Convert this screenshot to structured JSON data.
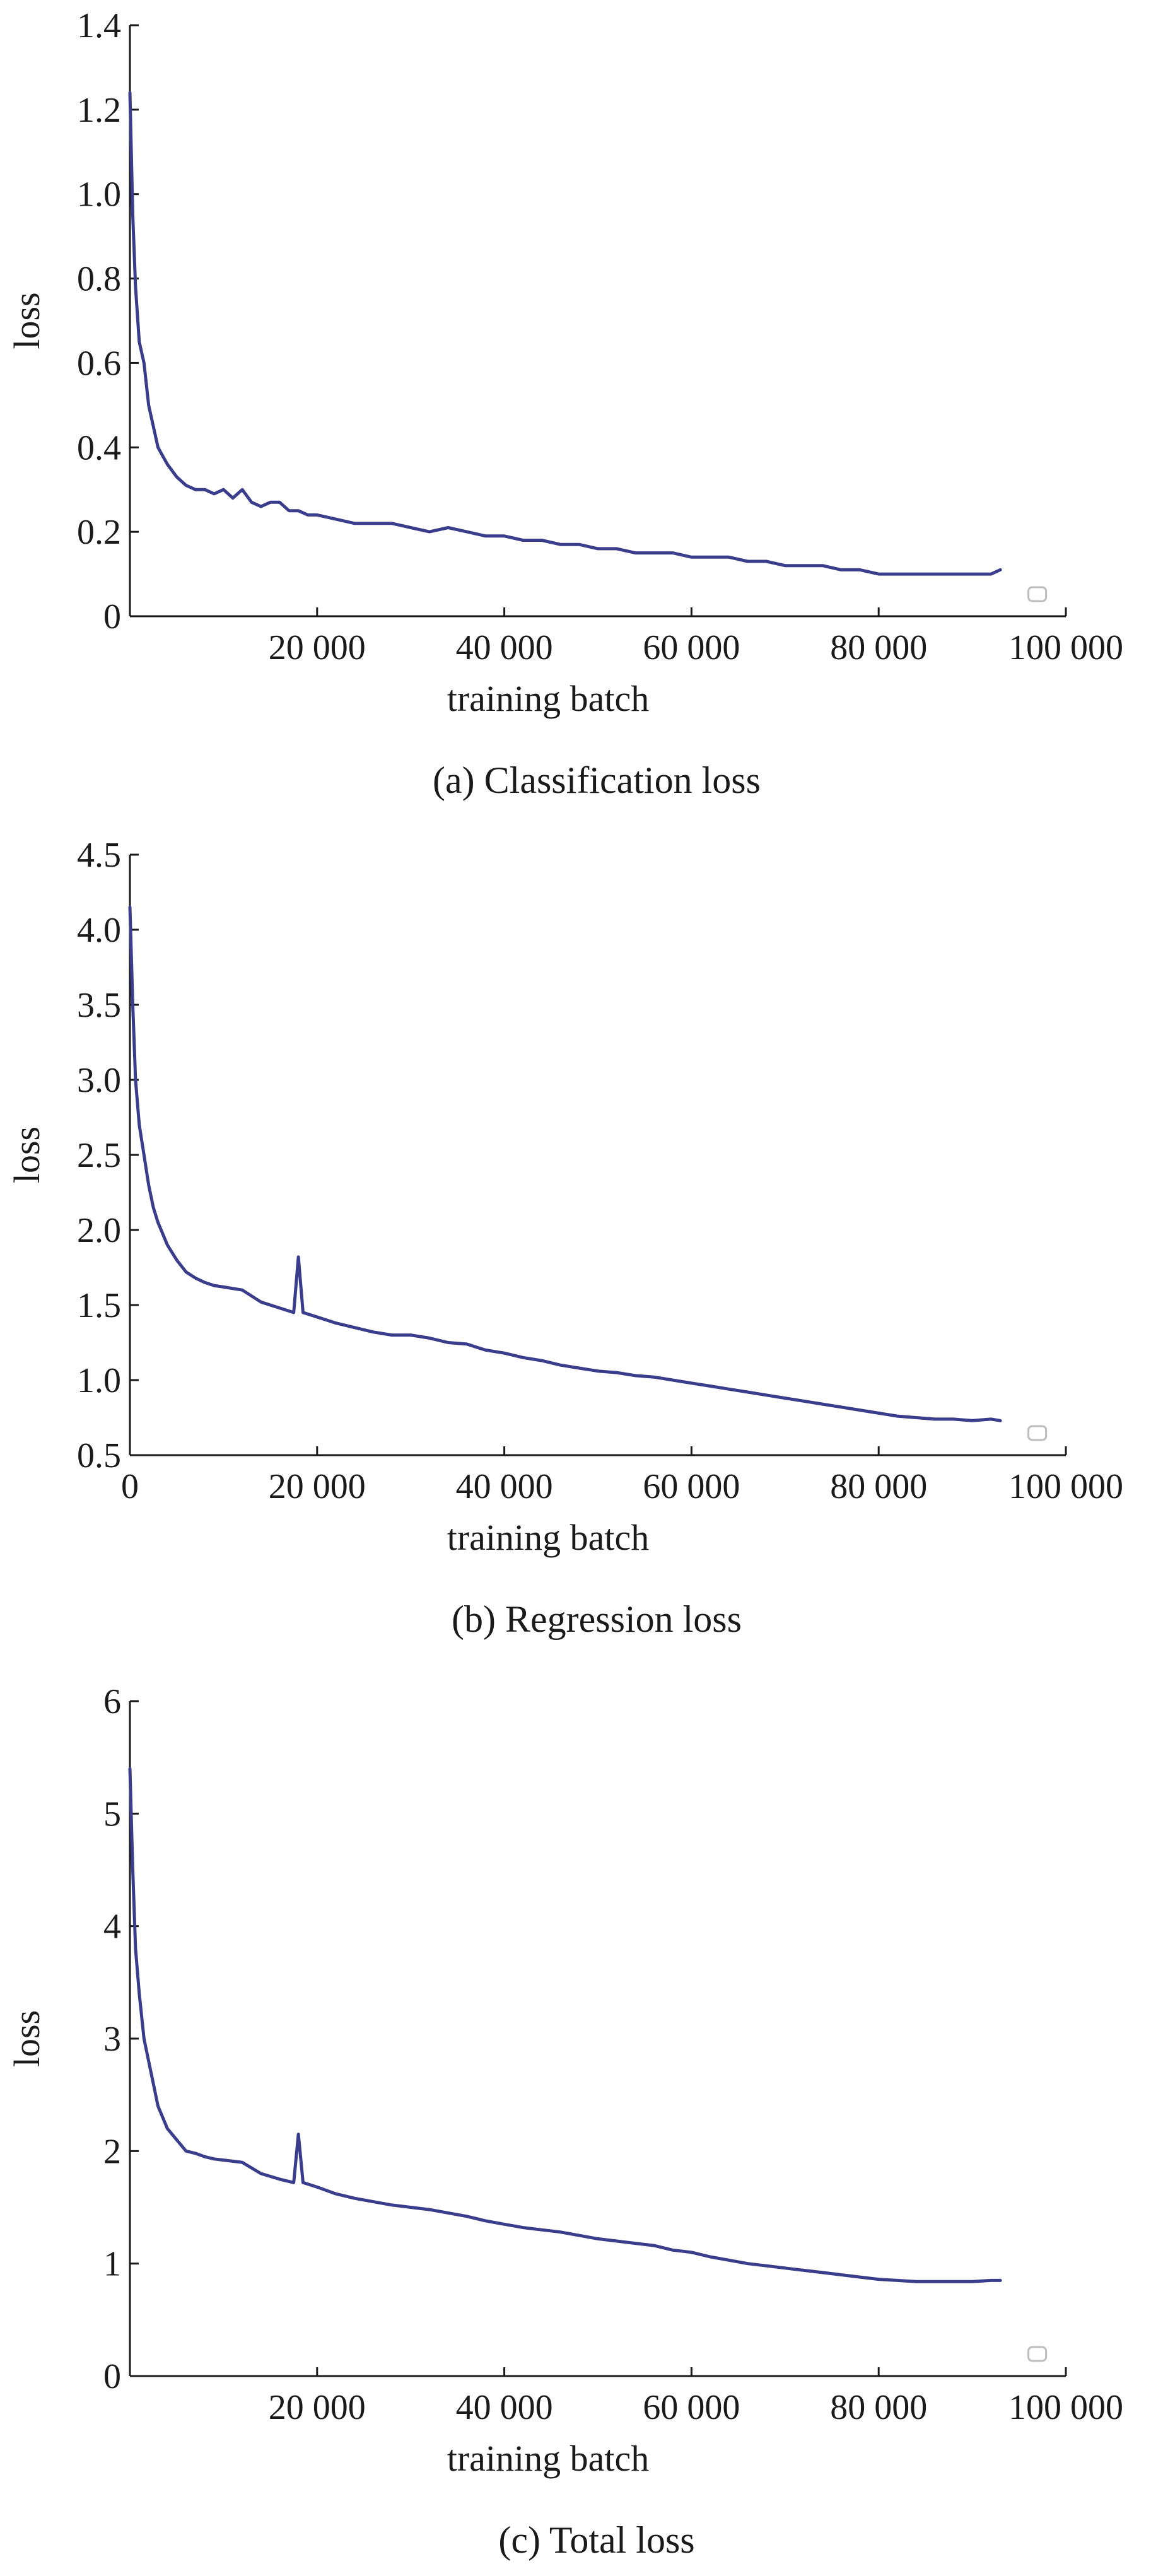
{
  "colors": {
    "line": "#3a3d8c",
    "axis": "#1a1a1a",
    "marker": "#bdbdbd"
  },
  "chart_data": [
    {
      "id": "a",
      "type": "line",
      "caption": "(a) Classification loss",
      "xlabel": "training batch",
      "ylabel": "loss",
      "xlim": [
        0,
        100000
      ],
      "ylim": [
        0,
        1.4
      ],
      "xticks": [
        20000,
        40000,
        60000,
        80000,
        100000
      ],
      "xtick_labels": [
        "20 000",
        "40 000",
        "60 000",
        "80 000",
        "100 000"
      ],
      "yticks": [
        0,
        0.2,
        0.4,
        0.6,
        0.8,
        1.0,
        1.2,
        1.4
      ],
      "ytick_labels": [
        "0",
        "0.2",
        "0.4",
        "0.6",
        "0.8",
        "1.0",
        "1.2",
        "1.4"
      ],
      "grid": false,
      "legend": "none",
      "series": [
        {
          "x": [
            0,
            300,
            600,
            1000,
            1500,
            2000,
            2500,
            3000,
            3500,
            4000,
            5000,
            6000,
            7000,
            8000,
            9000,
            10000,
            11000,
            12000,
            13000,
            14000,
            15000,
            16000,
            17000,
            18000,
            19000,
            20000,
            22000,
            24000,
            26000,
            28000,
            30000,
            32000,
            34000,
            36000,
            38000,
            40000,
            42000,
            44000,
            46000,
            48000,
            50000,
            52000,
            54000,
            56000,
            58000,
            60000,
            62000,
            64000,
            66000,
            68000,
            70000,
            72000,
            74000,
            76000,
            78000,
            80000,
            82000,
            84000,
            86000,
            88000,
            90000,
            92000,
            93000
          ],
          "y": [
            1.24,
            0.95,
            0.78,
            0.65,
            0.6,
            0.5,
            0.45,
            0.4,
            0.38,
            0.36,
            0.33,
            0.31,
            0.3,
            0.3,
            0.29,
            0.3,
            0.28,
            0.3,
            0.27,
            0.26,
            0.27,
            0.27,
            0.25,
            0.25,
            0.24,
            0.24,
            0.23,
            0.22,
            0.22,
            0.22,
            0.21,
            0.2,
            0.21,
            0.2,
            0.19,
            0.19,
            0.18,
            0.18,
            0.17,
            0.17,
            0.16,
            0.16,
            0.15,
            0.15,
            0.15,
            0.14,
            0.14,
            0.14,
            0.13,
            0.13,
            0.12,
            0.12,
            0.12,
            0.11,
            0.11,
            0.1,
            0.1,
            0.1,
            0.1,
            0.1,
            0.1,
            0.1,
            0.11
          ]
        }
      ]
    },
    {
      "id": "b",
      "type": "line",
      "caption": "(b) Regression loss",
      "xlabel": "training batch",
      "ylabel": "loss",
      "xlim": [
        0,
        100000
      ],
      "ylim": [
        0.5,
        4.5
      ],
      "xticks": [
        0,
        20000,
        40000,
        60000,
        80000,
        100000
      ],
      "xtick_labels": [
        "0",
        "20 000",
        "40 000",
        "60 000",
        "80 000",
        "100 000"
      ],
      "yticks": [
        0.5,
        1.0,
        1.5,
        2.0,
        2.5,
        3.0,
        3.5,
        4.0,
        4.5
      ],
      "ytick_labels": [
        "0.5",
        "1.0",
        "1.5",
        "2.0",
        "2.5",
        "3.0",
        "3.5",
        "4.0",
        "4.5"
      ],
      "grid": false,
      "legend": "none",
      "series": [
        {
          "x": [
            0,
            300,
            600,
            1000,
            1500,
            2000,
            2500,
            3000,
            4000,
            5000,
            6000,
            7000,
            8000,
            9000,
            10000,
            12000,
            14000,
            16000,
            17500,
            18000,
            18500,
            20000,
            22000,
            24000,
            26000,
            28000,
            30000,
            32000,
            34000,
            36000,
            38000,
            40000,
            42000,
            44000,
            46000,
            48000,
            50000,
            52000,
            54000,
            56000,
            58000,
            60000,
            62000,
            64000,
            66000,
            68000,
            70000,
            72000,
            74000,
            76000,
            78000,
            80000,
            82000,
            84000,
            86000,
            88000,
            90000,
            92000,
            93000
          ],
          "y": [
            4.15,
            3.5,
            3.0,
            2.7,
            2.5,
            2.3,
            2.15,
            2.05,
            1.9,
            1.8,
            1.72,
            1.68,
            1.65,
            1.63,
            1.62,
            1.6,
            1.52,
            1.48,
            1.45,
            1.82,
            1.45,
            1.42,
            1.38,
            1.35,
            1.32,
            1.3,
            1.3,
            1.28,
            1.25,
            1.24,
            1.2,
            1.18,
            1.15,
            1.13,
            1.1,
            1.08,
            1.06,
            1.05,
            1.03,
            1.02,
            1.0,
            0.98,
            0.96,
            0.94,
            0.92,
            0.9,
            0.88,
            0.86,
            0.84,
            0.82,
            0.8,
            0.78,
            0.76,
            0.75,
            0.74,
            0.74,
            0.73,
            0.74,
            0.73
          ]
        }
      ]
    },
    {
      "id": "c",
      "type": "line",
      "caption": "(c) Total loss",
      "xlabel": "training batch",
      "ylabel": "loss",
      "xlim": [
        0,
        100000
      ],
      "ylim": [
        0,
        6
      ],
      "xticks": [
        20000,
        40000,
        60000,
        80000,
        100000
      ],
      "xtick_labels": [
        "20 000",
        "40 000",
        "60 000",
        "80 000",
        "100 000"
      ],
      "yticks": [
        0,
        1,
        2,
        3,
        4,
        5,
        6
      ],
      "ytick_labels": [
        "0",
        "1",
        "2",
        "3",
        "4",
        "5",
        "6"
      ],
      "grid": false,
      "legend": "none",
      "series": [
        {
          "x": [
            0,
            300,
            600,
            1000,
            1500,
            2000,
            2500,
            3000,
            4000,
            5000,
            6000,
            7000,
            8000,
            9000,
            10000,
            12000,
            14000,
            16000,
            17500,
            18000,
            18500,
            20000,
            22000,
            24000,
            26000,
            28000,
            30000,
            32000,
            34000,
            36000,
            38000,
            40000,
            42000,
            44000,
            46000,
            48000,
            50000,
            52000,
            54000,
            56000,
            58000,
            60000,
            62000,
            64000,
            66000,
            68000,
            70000,
            72000,
            74000,
            76000,
            78000,
            80000,
            82000,
            84000,
            86000,
            88000,
            90000,
            92000,
            93000
          ],
          "y": [
            5.4,
            4.5,
            3.8,
            3.4,
            3.0,
            2.8,
            2.6,
            2.4,
            2.2,
            2.1,
            2.0,
            1.98,
            1.95,
            1.93,
            1.92,
            1.9,
            1.8,
            1.75,
            1.72,
            2.15,
            1.72,
            1.68,
            1.62,
            1.58,
            1.55,
            1.52,
            1.5,
            1.48,
            1.45,
            1.42,
            1.38,
            1.35,
            1.32,
            1.3,
            1.28,
            1.25,
            1.22,
            1.2,
            1.18,
            1.16,
            1.12,
            1.1,
            1.06,
            1.03,
            1.0,
            0.98,
            0.96,
            0.94,
            0.92,
            0.9,
            0.88,
            0.86,
            0.85,
            0.84,
            0.84,
            0.84,
            0.84,
            0.85,
            0.85
          ]
        }
      ]
    }
  ]
}
